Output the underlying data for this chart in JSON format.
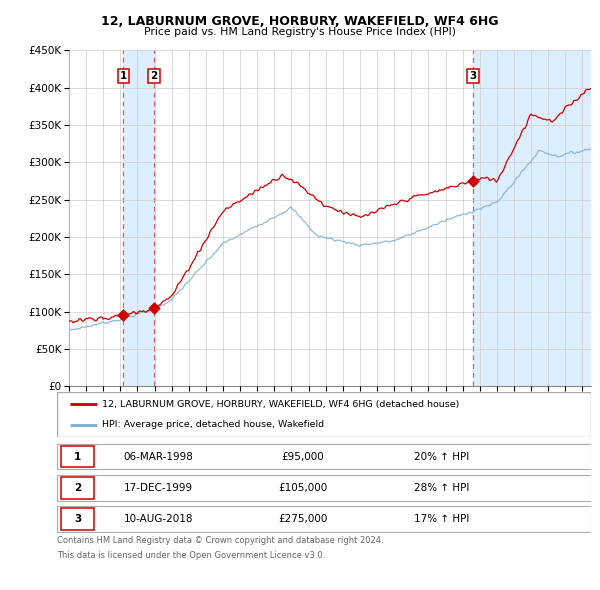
{
  "title": "12, LABURNUM GROVE, HORBURY, WAKEFIELD, WF4 6HG",
  "subtitle": "Price paid vs. HM Land Registry's House Price Index (HPI)",
  "legend_line1": "12, LABURNUM GROVE, HORBURY, WAKEFIELD, WF4 6HG (detached house)",
  "legend_line2": "HPI: Average price, detached house, Wakefield",
  "footer1": "Contains HM Land Registry data © Crown copyright and database right 2024.",
  "footer2": "This data is licensed under the Open Government Licence v3.0.",
  "transactions": [
    {
      "num": 1,
      "date": "06-MAR-1998",
      "price": "£95,000",
      "hpi": "20% ↑ HPI",
      "year": 1998.18
    },
    {
      "num": 2,
      "date": "17-DEC-1999",
      "price": "£105,000",
      "hpi": "28% ↑ HPI",
      "year": 1999.96
    },
    {
      "num": 3,
      "date": "10-AUG-2018",
      "price": "£275,000",
      "hpi": "17% ↑ HPI",
      "year": 2018.61
    }
  ],
  "transaction_values": [
    95000,
    105000,
    275000
  ],
  "red_color": "#cc0000",
  "blue_color": "#7aaed6",
  "shading_color": "#ddeeff",
  "grid_color": "#cccccc",
  "dashed_color": "#dd4444",
  "ylim": [
    0,
    450000
  ],
  "xlim_start": 1995.0,
  "xlim_end": 2025.5,
  "yticks": [
    0,
    50000,
    100000,
    150000,
    200000,
    250000,
    300000,
    350000,
    400000,
    450000
  ]
}
